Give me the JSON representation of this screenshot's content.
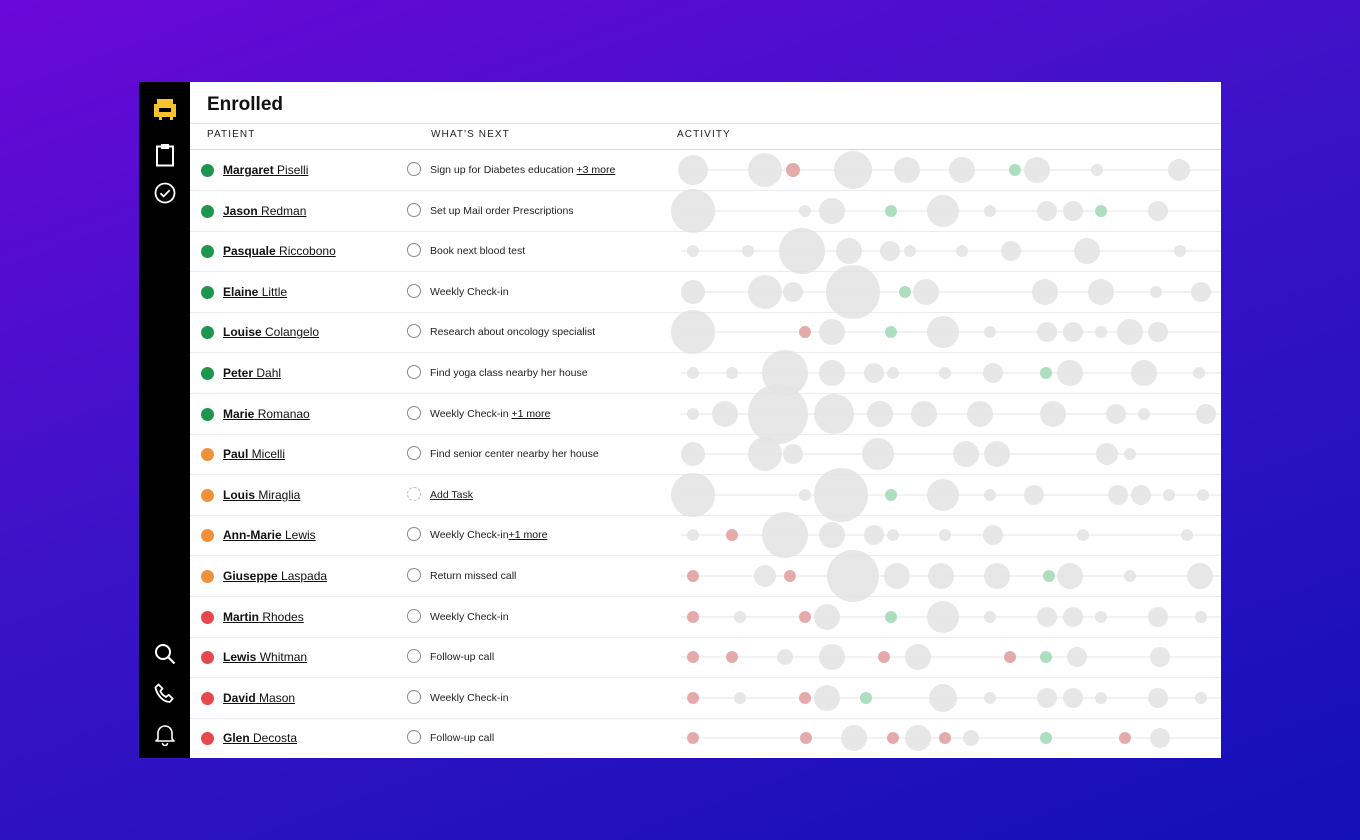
{
  "app": {
    "title": "Enrolled",
    "columns": {
      "patient": "PATIENT",
      "next": "WHAT'S NEXT",
      "activity": "ACTIVITY"
    },
    "colors": {
      "green": "#1f9650",
      "orange": "#f0913a",
      "red": "#e5484d",
      "bubble_gray": "#e3e3e3",
      "bubble_red": "#e4a7a7",
      "bubble_green": "#a8dcbc",
      "logo_yellow": "#f5c32c"
    }
  },
  "sidebar": {
    "top_icons": [
      "armchair-logo-icon",
      "clipboard-icon",
      "check-circle-icon"
    ],
    "bottom_icons": [
      "search-icon",
      "phone-icon",
      "bell-icon"
    ]
  },
  "patients": [
    {
      "first": "Margaret",
      "last": "Piselli",
      "status": "green",
      "task": "Sign up for Diabetes education ",
      "more": "+3 more",
      "activity": [
        [
          12,
          0,
          15
        ],
        [
          84,
          0,
          17
        ],
        [
          112,
          1,
          7
        ],
        [
          172,
          0,
          19
        ],
        [
          226,
          0,
          13
        ],
        [
          281,
          0,
          13
        ],
        [
          334,
          2,
          6
        ],
        [
          356,
          0,
          13
        ],
        [
          416,
          0,
          6
        ],
        [
          498,
          0,
          11
        ]
      ]
    },
    {
      "first": "Jason",
      "last": "Redman",
      "status": "green",
      "task": "Set up Mail order Prescriptions",
      "more": "",
      "activity": [
        [
          12,
          0,
          22
        ],
        [
          124,
          0,
          6
        ],
        [
          151,
          0,
          13
        ],
        [
          210,
          2,
          6
        ],
        [
          262,
          0,
          16
        ],
        [
          309,
          0,
          6
        ],
        [
          366,
          0,
          10
        ],
        [
          392,
          0,
          10
        ],
        [
          420,
          2,
          6
        ],
        [
          477,
          0,
          10
        ]
      ]
    },
    {
      "first": "Pasquale",
      "last": "Riccobono",
      "status": "green",
      "task": "Book next blood test",
      "more": "",
      "activity": [
        [
          12,
          0,
          6
        ],
        [
          67,
          0,
          6
        ],
        [
          121,
          0,
          23
        ],
        [
          168,
          0,
          13
        ],
        [
          209,
          0,
          10
        ],
        [
          229,
          0,
          6
        ],
        [
          281,
          0,
          6
        ],
        [
          330,
          0,
          10
        ],
        [
          406,
          0,
          13
        ],
        [
          499,
          0,
          6
        ]
      ]
    },
    {
      "first": "Elaine",
      "last": "Little",
      "status": "green",
      "task": "Weekly Check-in",
      "more": "",
      "activity": [
        [
          12,
          0,
          12
        ],
        [
          84,
          0,
          17
        ],
        [
          112,
          0,
          10
        ],
        [
          172,
          0,
          27
        ],
        [
          224,
          2,
          6
        ],
        [
          245,
          0,
          13
        ],
        [
          364,
          0,
          13
        ],
        [
          420,
          0,
          13
        ],
        [
          475,
          0,
          6
        ],
        [
          520,
          0,
          10
        ]
      ]
    },
    {
      "first": "Louise",
      "last": "Colangelo",
      "status": "green",
      "task": "Research about oncology specialist",
      "more": "",
      "activity": [
        [
          12,
          0,
          22
        ],
        [
          124,
          1,
          6
        ],
        [
          151,
          0,
          13
        ],
        [
          210,
          2,
          6
        ],
        [
          262,
          0,
          16
        ],
        [
          309,
          0,
          6
        ],
        [
          366,
          0,
          10
        ],
        [
          392,
          0,
          10
        ],
        [
          420,
          0,
          6
        ],
        [
          449,
          0,
          13
        ],
        [
          477,
          0,
          10
        ]
      ]
    },
    {
      "first": "Peter",
      "last": "Dahl",
      "status": "green",
      "task": "Find yoga class nearby her house",
      "more": "",
      "activity": [
        [
          12,
          0,
          6
        ],
        [
          51,
          0,
          6
        ],
        [
          104,
          0,
          23
        ],
        [
          151,
          0,
          13
        ],
        [
          193,
          0,
          10
        ],
        [
          212,
          0,
          6
        ],
        [
          264,
          0,
          6
        ],
        [
          312,
          0,
          10
        ],
        [
          365,
          2,
          6
        ],
        [
          389,
          0,
          13
        ],
        [
          463,
          0,
          13
        ],
        [
          518,
          0,
          6
        ]
      ]
    },
    {
      "first": "Marie",
      "last": "Romanao",
      "status": "green",
      "task": "Weekly Check-in  ",
      "more": "+1 more",
      "activity": [
        [
          12,
          0,
          6
        ],
        [
          44,
          0,
          13
        ],
        [
          97,
          0,
          30
        ],
        [
          153,
          0,
          20
        ],
        [
          199,
          0,
          13
        ],
        [
          243,
          0,
          13
        ],
        [
          299,
          0,
          13
        ],
        [
          372,
          0,
          13
        ],
        [
          435,
          0,
          10
        ],
        [
          463,
          0,
          6
        ],
        [
          525,
          0,
          10
        ]
      ]
    },
    {
      "first": "Paul",
      "last": "Micelli",
      "status": "orange",
      "task": "Find senior center nearby her house",
      "more": "",
      "activity": [
        [
          12,
          0,
          12
        ],
        [
          84,
          0,
          17
        ],
        [
          112,
          0,
          10
        ],
        [
          197,
          0,
          16
        ],
        [
          285,
          0,
          13
        ],
        [
          316,
          0,
          13
        ],
        [
          426,
          0,
          11
        ],
        [
          449,
          0,
          6
        ]
      ]
    },
    {
      "first": "Louis",
      "last": "Miraglia",
      "status": "orange",
      "task": "",
      "more": "",
      "addtask": "Add Task",
      "activity": [
        [
          12,
          0,
          22
        ],
        [
          124,
          0,
          6
        ],
        [
          160,
          0,
          27
        ],
        [
          210,
          2,
          6
        ],
        [
          262,
          0,
          16
        ],
        [
          309,
          0,
          6
        ],
        [
          353,
          0,
          10
        ],
        [
          437,
          0,
          10
        ],
        [
          460,
          0,
          10
        ],
        [
          488,
          0,
          6
        ],
        [
          522,
          0,
          6
        ]
      ]
    },
    {
      "first": "Ann-Marie",
      "last": "Lewis",
      "status": "orange",
      "task": "Weekly Check-in",
      "more": "+1 more",
      "activity": [
        [
          12,
          0,
          6
        ],
        [
          51,
          1,
          6
        ],
        [
          104,
          0,
          23
        ],
        [
          151,
          0,
          13
        ],
        [
          193,
          0,
          10
        ],
        [
          212,
          0,
          6
        ],
        [
          264,
          0,
          6
        ],
        [
          312,
          0,
          10
        ],
        [
          402,
          0,
          6
        ],
        [
          506,
          0,
          6
        ]
      ]
    },
    {
      "first": "Giuseppe",
      "last": "Laspada",
      "status": "orange",
      "task": "Return missed call",
      "more": "",
      "activity": [
        [
          12,
          1,
          6
        ],
        [
          84,
          0,
          11
        ],
        [
          109,
          1,
          6
        ],
        [
          172,
          0,
          26
        ],
        [
          216,
          0,
          13
        ],
        [
          260,
          0,
          13
        ],
        [
          316,
          0,
          13
        ],
        [
          368,
          2,
          6
        ],
        [
          389,
          0,
          13
        ],
        [
          449,
          0,
          6
        ],
        [
          519,
          0,
          13
        ]
      ]
    },
    {
      "first": "Martin",
      "last": "Rhodes",
      "status": "red",
      "task": "Weekly Check-in",
      "more": "",
      "activity": [
        [
          12,
          1,
          6
        ],
        [
          59,
          0,
          6
        ],
        [
          124,
          1,
          6
        ],
        [
          146,
          0,
          13
        ],
        [
          210,
          2,
          6
        ],
        [
          262,
          0,
          16
        ],
        [
          309,
          0,
          6
        ],
        [
          366,
          0,
          10
        ],
        [
          392,
          0,
          10
        ],
        [
          420,
          0,
          6
        ],
        [
          477,
          0,
          10
        ],
        [
          520,
          0,
          6
        ]
      ]
    },
    {
      "first": "Lewis",
      "last": "Whitman",
      "status": "red",
      "task": "Follow-up call",
      "more": "",
      "activity": [
        [
          12,
          1,
          6
        ],
        [
          51,
          1,
          6
        ],
        [
          104,
          0,
          8
        ],
        [
          151,
          0,
          13
        ],
        [
          203,
          1,
          6
        ],
        [
          237,
          0,
          13
        ],
        [
          329,
          1,
          6
        ],
        [
          365,
          2,
          6
        ],
        [
          396,
          0,
          10
        ],
        [
          479,
          0,
          10
        ]
      ]
    },
    {
      "first": "David",
      "last": "Mason",
      "status": "red",
      "task": "Weekly Check-in",
      "more": "",
      "activity": [
        [
          12,
          1,
          6
        ],
        [
          59,
          0,
          6
        ],
        [
          124,
          1,
          6
        ],
        [
          146,
          0,
          13
        ],
        [
          185,
          2,
          6
        ],
        [
          262,
          0,
          14
        ],
        [
          309,
          0,
          6
        ],
        [
          366,
          0,
          10
        ],
        [
          392,
          0,
          10
        ],
        [
          420,
          0,
          6
        ],
        [
          477,
          0,
          10
        ],
        [
          520,
          0,
          6
        ]
      ]
    },
    {
      "first": "Glen",
      "last": "Decosta",
      "status": "red",
      "task": "Follow-up call",
      "more": "",
      "activity": [
        [
          12,
          1,
          6
        ],
        [
          125,
          1,
          6
        ],
        [
          173,
          0,
          13
        ],
        [
          212,
          1,
          6
        ],
        [
          237,
          0,
          13
        ],
        [
          264,
          1,
          6
        ],
        [
          290,
          0,
          8
        ],
        [
          365,
          2,
          6
        ],
        [
          444,
          1,
          6
        ],
        [
          479,
          0,
          10
        ]
      ]
    }
  ]
}
